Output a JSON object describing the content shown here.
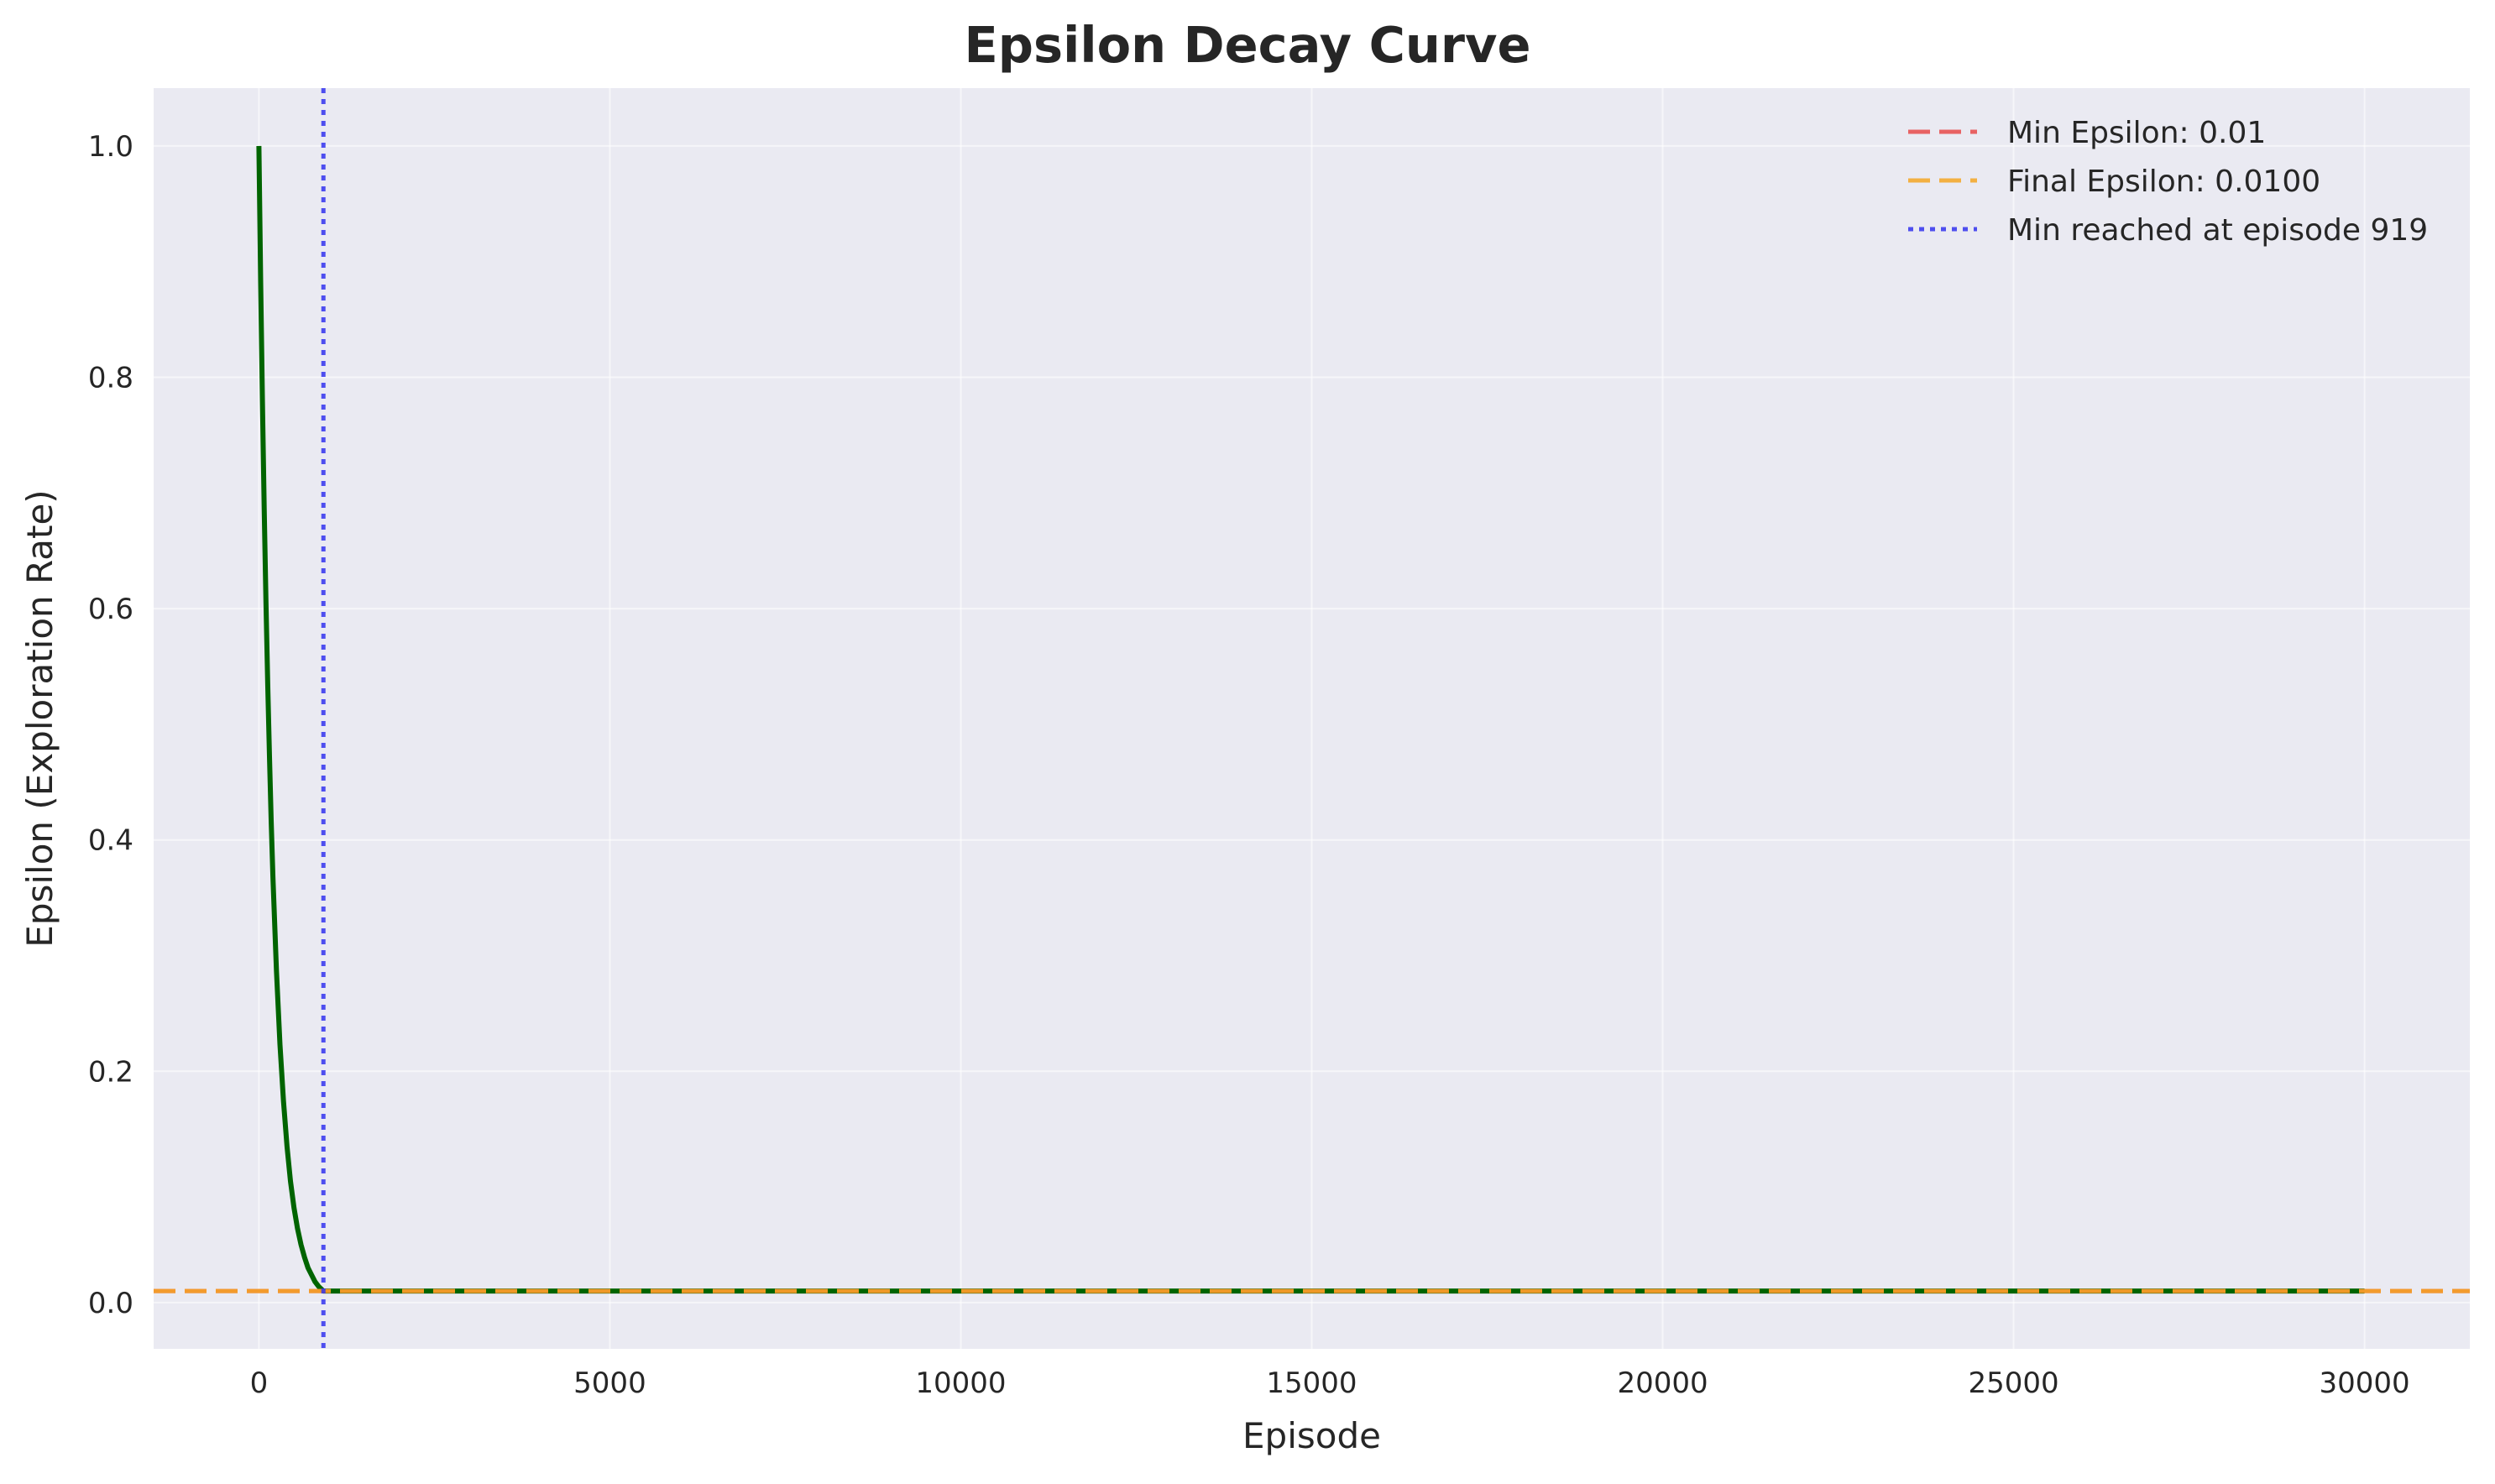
{
  "chart_data": {
    "type": "line",
    "title": "Epsilon Decay Curve",
    "xlabel": "Episode",
    "ylabel": "Epsilon (Exploration Rate)",
    "xlim": [
      -1500,
      31500
    ],
    "ylim": [
      -0.04,
      1.05
    ],
    "xticks": [
      0,
      5000,
      10000,
      15000,
      20000,
      25000,
      30000
    ],
    "xtick_labels": [
      "0",
      "5000",
      "10000",
      "15000",
      "20000",
      "25000",
      "30000"
    ],
    "yticks": [
      0.0,
      0.2,
      0.4,
      0.6,
      0.8,
      1.0
    ],
    "ytick_labels": [
      "0.0",
      "0.2",
      "0.4",
      "0.6",
      "0.8",
      "1.0"
    ],
    "grid": true,
    "background": "#eaeaf2",
    "legend_position": "top-right",
    "series": [
      {
        "color": "#006400",
        "style": "solid",
        "x": [
          0,
          25,
          50,
          75,
          100,
          125,
          150,
          175,
          200,
          250,
          300,
          350,
          400,
          450,
          500,
          550,
          600,
          650,
          700,
          750,
          800,
          850,
          919,
          1500,
          5000,
          10000,
          15000,
          20000,
          25000,
          30000
        ],
        "y": [
          1.0,
          0.882,
          0.779,
          0.687,
          0.606,
          0.535,
          0.472,
          0.417,
          0.368,
          0.287,
          0.223,
          0.174,
          0.135,
          0.105,
          0.082,
          0.064,
          0.05,
          0.039,
          0.03,
          0.024,
          0.018,
          0.014,
          0.01,
          0.01,
          0.01,
          0.01,
          0.01,
          0.01,
          0.01,
          0.01
        ]
      }
    ],
    "reference_lines": [
      {
        "orientation": "horizontal",
        "value": 0.01,
        "label": "Min Epsilon: 0.01",
        "color": "#e84a4a",
        "style": "dashed"
      },
      {
        "orientation": "horizontal",
        "value": 0.01,
        "label": "Final Epsilon: 0.0100",
        "color": "#f5a623",
        "style": "dashed"
      },
      {
        "orientation": "vertical",
        "value": 919,
        "label": "Min reached at episode 919",
        "color": "#3333ee",
        "style": "dotted"
      }
    ],
    "legend": [
      "Min Epsilon: 0.01",
      "Final Epsilon: 0.0100",
      "Min reached at episode 919"
    ]
  }
}
